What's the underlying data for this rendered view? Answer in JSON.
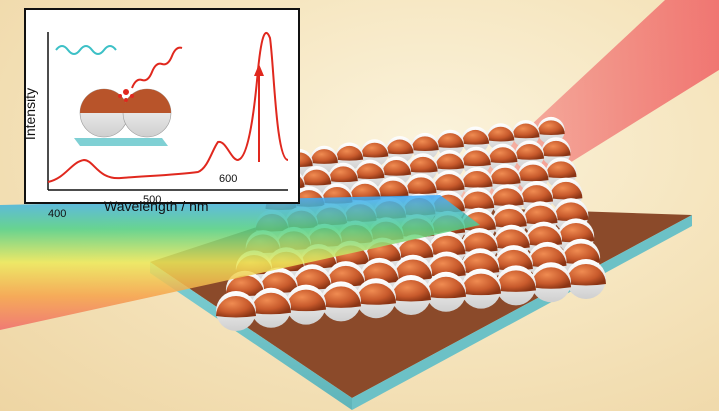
{
  "inset": {
    "ylabel": "Intensity",
    "xlabel": "Wavelength / nm",
    "ticks": [
      "400",
      "500",
      "600"
    ]
  },
  "colors": {
    "background": "#f6e6c0",
    "substrate_top": "#9a4f2c",
    "substrate_edge": "#7fd0d4",
    "particle_cap": "#c8643a",
    "particle_base": "#f2f2f2",
    "spectrum_line": "#e0281e",
    "laser_beam": "#f06a6a"
  },
  "icons": [
    "wavy-light-arrow-icon",
    "sparkle-icon",
    "scattered-light-arrow-icon"
  ]
}
